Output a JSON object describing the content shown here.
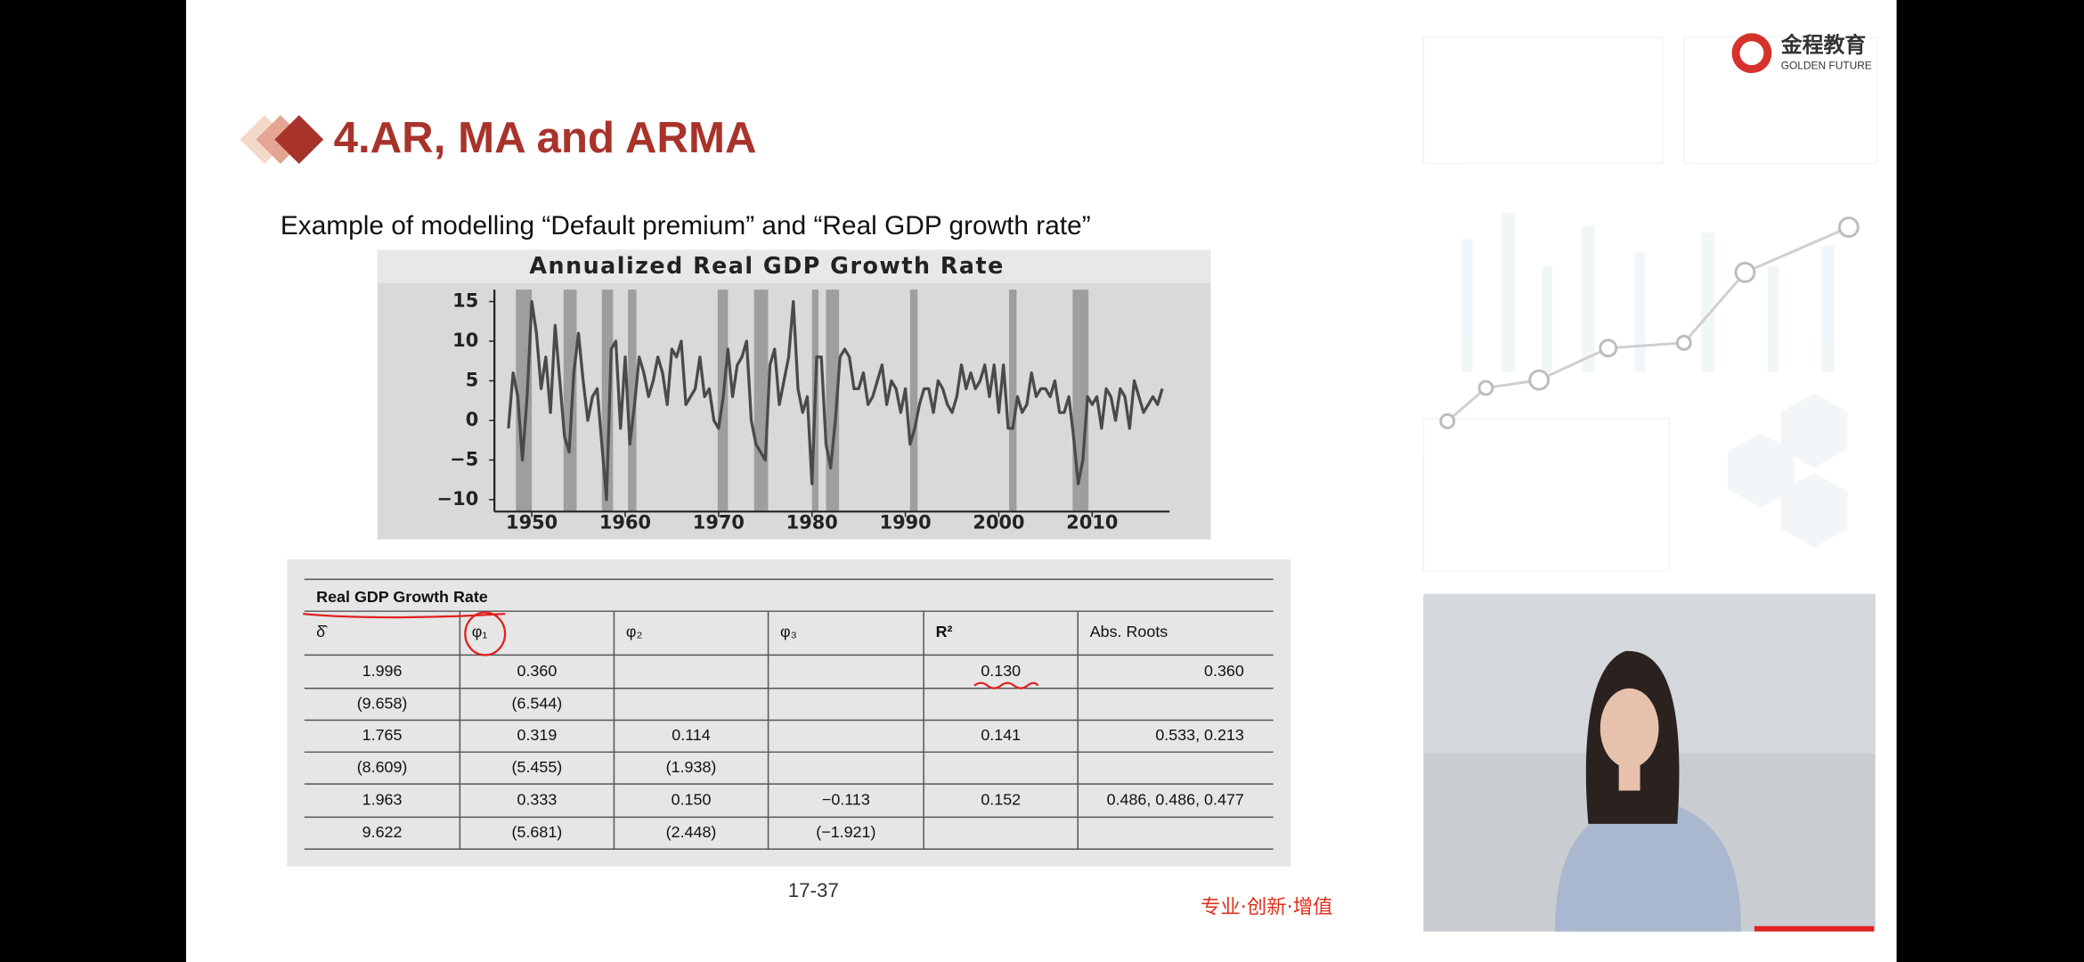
{
  "slide": {
    "title": "4.AR, MA and ARMA",
    "subtitle": "Example of modelling “Default premium” and “Real GDP growth rate”",
    "page": "17-37",
    "slogan": "专业·创新·增值",
    "logo": {
      "name": "金程教育",
      "english": "GOLDEN FUTURE"
    }
  },
  "chart_data": {
    "type": "line",
    "title": "Annualized Real GDP Growth Rate",
    "x": [
      1947.5,
      1948,
      1948.5,
      1949,
      1949.5,
      1950,
      1950.5,
      1951,
      1951.5,
      1952,
      1952.5,
      1953,
      1953.5,
      1954,
      1954.5,
      1955,
      1955.5,
      1956,
      1956.5,
      1957,
      1957.5,
      1958,
      1958.5,
      1959,
      1959.5,
      1960,
      1960.5,
      1961,
      1961.5,
      1962,
      1962.5,
      1963,
      1963.5,
      1964,
      1964.5,
      1965,
      1965.5,
      1966,
      1966.5,
      1967,
      1967.5,
      1968,
      1968.5,
      1969,
      1969.5,
      1970,
      1970.5,
      1971,
      1971.5,
      1972,
      1972.5,
      1973,
      1973.5,
      1974,
      1974.5,
      1975,
      1975.5,
      1976,
      1976.5,
      1977,
      1977.5,
      1978,
      1978.5,
      1979,
      1979.5,
      1980,
      1980.5,
      1981,
      1981.5,
      1982,
      1982.5,
      1983,
      1983.5,
      1984,
      1984.5,
      1985,
      1985.5,
      1986,
      1986.5,
      1987,
      1987.5,
      1988,
      1988.5,
      1989,
      1989.5,
      1990,
      1990.5,
      1991,
      1991.5,
      1992,
      1992.5,
      1993,
      1993.5,
      1994,
      1994.5,
      1995,
      1995.5,
      1996,
      1996.5,
      1997,
      1997.5,
      1998,
      1998.5,
      1999,
      1999.5,
      2000,
      2000.5,
      2001,
      2001.5,
      2002,
      2002.5,
      2003,
      2003.5,
      2004,
      2004.5,
      2005,
      2005.5,
      2006,
      2006.5,
      2007,
      2007.5,
      2008,
      2008.5,
      2009,
      2009.5,
      2010,
      2010.5,
      2011,
      2011.5,
      2012,
      2012.5,
      2013,
      2013.5,
      2014,
      2014.5,
      2015,
      2015.5,
      2016,
      2016.5,
      2017,
      2017.5
    ],
    "series": [
      {
        "color": "#4a4a4a",
        "values": [
          -1,
          6,
          3,
          -5,
          3,
          15,
          11,
          4,
          8,
          1,
          12,
          5,
          -2,
          -4,
          6,
          11,
          5,
          0,
          3,
          4,
          -3,
          -10,
          9,
          10,
          -1,
          8,
          -3,
          2,
          8,
          6,
          3,
          5,
          8,
          6,
          2,
          9,
          8,
          10,
          2,
          3,
          4,
          8,
          3,
          4,
          0,
          -1,
          3,
          9,
          3,
          7,
          8,
          10,
          0,
          -3,
          -4,
          -5,
          7,
          9,
          2,
          5,
          8,
          15,
          4,
          1,
          3,
          -8,
          8,
          8,
          -3,
          -6,
          0,
          8,
          9,
          8,
          4,
          4,
          6,
          2,
          3,
          5,
          7,
          2,
          5,
          4,
          1,
          4,
          -3,
          -1,
          2,
          4,
          4,
          1,
          5,
          4,
          2,
          1,
          3,
          7,
          4,
          6,
          4,
          5,
          7,
          3,
          7,
          1,
          7,
          -1,
          -1,
          3,
          1,
          2,
          6,
          3,
          4,
          4,
          3,
          5,
          1,
          1,
          3,
          -2,
          -8,
          -5,
          3,
          2,
          3,
          -1,
          4,
          3,
          0,
          4,
          3,
          -1,
          5,
          3,
          1,
          2,
          3,
          2,
          4
        ]
      }
    ],
    "shaded_periods": [
      [
        1948.3,
        1950
      ],
      [
        1953.4,
        1954.8
      ],
      [
        1957.5,
        1958.7
      ],
      [
        1960.3,
        1961.2
      ],
      [
        1969.9,
        1971
      ],
      [
        1973.8,
        1975.3
      ],
      [
        1980,
        1980.7
      ],
      [
        1981.5,
        1982.9
      ],
      [
        1990.5,
        1991.3
      ],
      [
        2001.1,
        2001.9
      ],
      [
        2007.9,
        2009.6
      ]
    ],
    "xlim": [
      1946,
      2018
    ],
    "ylim": [
      -11.5,
      16.5
    ],
    "xticks": [
      1950,
      1960,
      1970,
      1980,
      1990,
      2000,
      2010
    ],
    "yticks": [
      15,
      10,
      5,
      0,
      {
        "value": -5,
        "label": "−5"
      },
      {
        "value": -10,
        "label": "−10"
      }
    ]
  },
  "table": {
    "title": "Real GDP Growth Rate",
    "header": [
      "δ̂",
      "φ₁",
      "φ₂",
      "φ₃",
      "R²",
      "Abs. Roots"
    ],
    "rows": [
      [
        "1.996",
        "0.360",
        null,
        null,
        "0.130",
        "0.360"
      ],
      [
        "(9.658)",
        "(6.544)",
        null,
        null,
        null,
        null
      ],
      [
        "1.765",
        "0.319",
        "0.114",
        null,
        "0.141",
        "0.533, 0.213"
      ],
      [
        "(8.609)",
        "(5.455)",
        "(1.938)",
        null,
        null,
        null
      ],
      [
        "1.963",
        "0.333",
        "0.150",
        "−0.113",
        "0.152",
        "0.486, 0.486, 0.477"
      ],
      [
        "9.622",
        "(5.681)",
        "(2.448)",
        "(−1.921)",
        null,
        null
      ]
    ]
  }
}
